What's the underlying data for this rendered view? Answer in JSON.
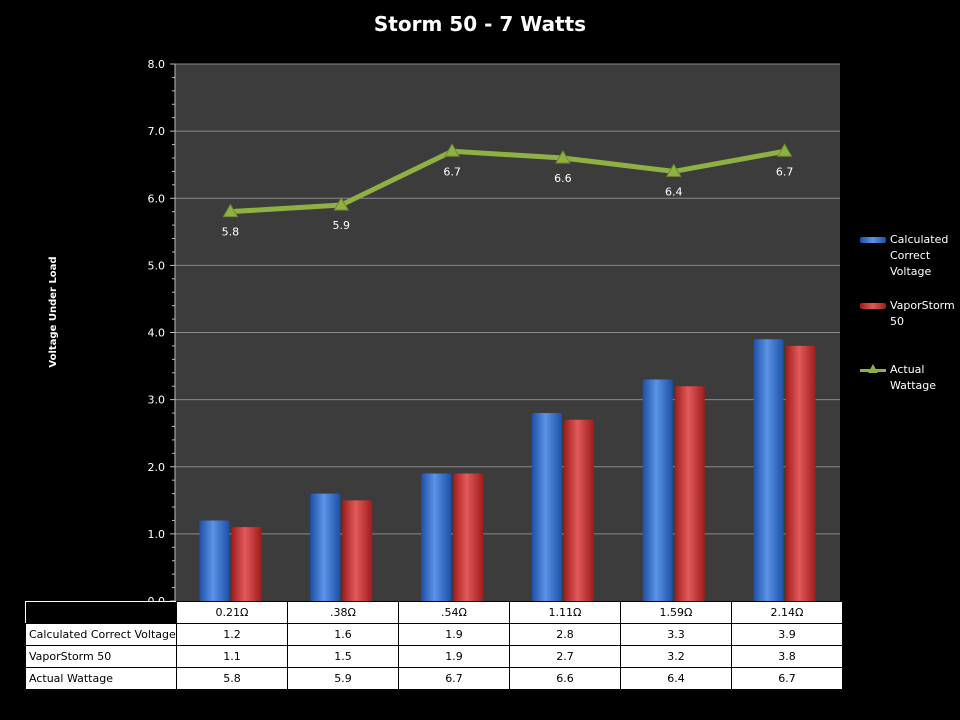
{
  "colors": {
    "background": "#000000",
    "plot_area": "#3c3c3c",
    "calculated": "#2f6ccd",
    "vaporstorm": "#cc2d2d",
    "wattage_line": "#8fb043",
    "table_bg": "#ffffff"
  },
  "chart_data": {
    "type": "bar",
    "title": "Storm 50 - 7 Watts",
    "ylabel": "Voltage Under Load",
    "xlabel": "",
    "ylim": [
      0,
      8
    ],
    "y_ticks": [
      "0.0",
      "1.0",
      "2.0",
      "3.0",
      "4.0",
      "5.0",
      "6.0",
      "7.0",
      "8.0"
    ],
    "grid": true,
    "legend_position": "right",
    "categories": [
      "0.21Ω",
      ".38Ω",
      ".54Ω",
      "1.11Ω",
      "1.59Ω",
      "2.14Ω"
    ],
    "series": [
      {
        "name": "Calculated Correct Voltage",
        "type": "bar",
        "color": "#2f6ccd",
        "values": [
          1.2,
          1.6,
          1.9,
          2.8,
          3.3,
          3.9
        ],
        "table_values": [
          "1.2",
          "1.6",
          "1.9",
          "2.8",
          "3.3",
          "3.9"
        ]
      },
      {
        "name": "VaporStorm 50",
        "type": "bar",
        "color": "#cc2d2d",
        "values": [
          1.1,
          1.5,
          1.9,
          2.7,
          3.2,
          3.8
        ],
        "table_values": [
          "1.1",
          "1.5",
          "1.9",
          "2.7",
          "3.2",
          "3.8"
        ]
      },
      {
        "name": "Actual Wattage",
        "type": "line",
        "marker": "triangle",
        "color": "#8fb043",
        "values": [
          5.8,
          5.9,
          6.7,
          6.6,
          6.4,
          6.7
        ],
        "data_labels": [
          "5.8",
          "5.9",
          "6.7",
          "6.6",
          "6.4",
          "6.7"
        ],
        "table_values": [
          "5.8",
          "5.9",
          "6.7",
          "6.6",
          "6.4",
          "6.7"
        ]
      }
    ]
  },
  "legend": {
    "items": [
      {
        "label": "Calculated Correct Voltage",
        "swatch": "bar",
        "color": "#2f6ccd"
      },
      {
        "label": "VaporStorm 50",
        "swatch": "bar",
        "color": "#cc2d2d"
      },
      {
        "label": "Actual Wattage",
        "swatch": "line-triangle",
        "color": "#8fb043"
      }
    ]
  }
}
